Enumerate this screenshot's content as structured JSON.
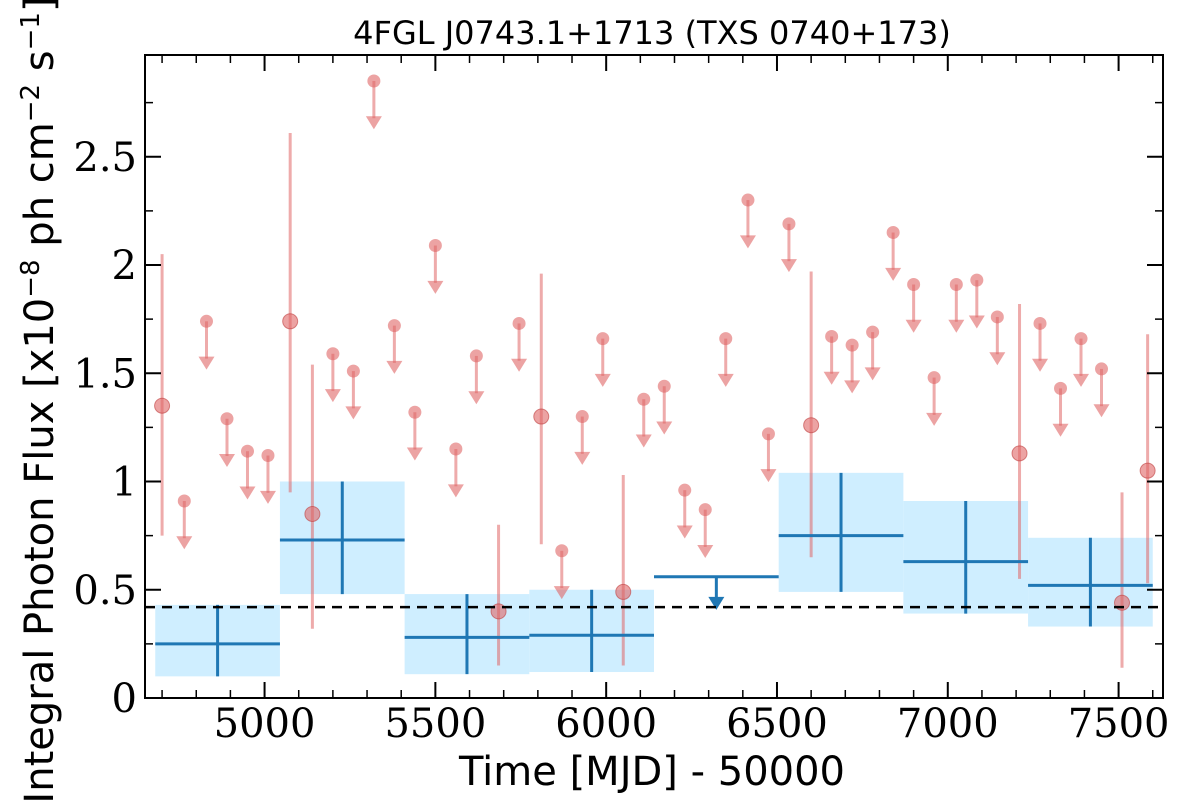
{
  "chart_data": {
    "type": "scatter",
    "title": "4FGL J0743.1+1713 (TXS 0740+173)",
    "xlabel": "Time [MJD] - 50000",
    "ylabel": "Integral Photon Flux [x10",
    "ylabel_exp1": "−8",
    "ylabel_mid": " ph cm",
    "ylabel_exp2": "−2",
    "ylabel_end": " s",
    "ylabel_exp3": "−1",
    "ylabel_close": "]",
    "xlim": [
      4650,
      7630
    ],
    "ylim": [
      0,
      2.97
    ],
    "xticks": [
      5000,
      5500,
      6000,
      6500,
      7000,
      7500
    ],
    "xtick_labels": [
      "5000",
      "5500",
      "6000",
      "6500",
      "7000",
      "7500"
    ],
    "yticks": [
      0,
      0.5,
      1,
      1.5,
      2,
      2.5
    ],
    "ytick_labels": [
      "0",
      "0.5",
      "1",
      "1.5",
      "2",
      "2.5"
    ],
    "reference_line": 0.42,
    "colors": {
      "points": "#e06666",
      "bins": "#1f77b4",
      "bin_fill": "#cfeeff",
      "reference": "#000000"
    },
    "short_detections": [
      {
        "x": 4700,
        "y": 1.35,
        "lo": 0.75,
        "hi": 2.05
      },
      {
        "x": 5075,
        "y": 1.74,
        "lo": 0.95,
        "hi": 2.61
      },
      {
        "x": 5140,
        "y": 0.85,
        "lo": 0.32,
        "hi": 1.54
      },
      {
        "x": 5685,
        "y": 0.4,
        "lo": 0.15,
        "hi": 0.8
      },
      {
        "x": 5810,
        "y": 1.3,
        "lo": 0.71,
        "hi": 1.96
      },
      {
        "x": 6050,
        "y": 0.49,
        "lo": 0.15,
        "hi": 1.03
      },
      {
        "x": 6600,
        "y": 1.26,
        "lo": 0.65,
        "hi": 1.97
      },
      {
        "x": 7210,
        "y": 1.13,
        "lo": 0.55,
        "hi": 1.82
      },
      {
        "x": 7510,
        "y": 0.44,
        "lo": 0.14,
        "hi": 0.95
      },
      {
        "x": 7585,
        "y": 1.05,
        "lo": 0.53,
        "hi": 1.68
      }
    ],
    "short_upper_limits": [
      {
        "x": 4765,
        "y": 0.91
      },
      {
        "x": 4830,
        "y": 1.74
      },
      {
        "x": 4890,
        "y": 1.29
      },
      {
        "x": 4950,
        "y": 1.14
      },
      {
        "x": 5010,
        "y": 1.12
      },
      {
        "x": 5200,
        "y": 1.59
      },
      {
        "x": 5260,
        "y": 1.51
      },
      {
        "x": 5320,
        "y": 2.85
      },
      {
        "x": 5380,
        "y": 1.72
      },
      {
        "x": 5440,
        "y": 1.32
      },
      {
        "x": 5500,
        "y": 2.09
      },
      {
        "x": 5560,
        "y": 1.15
      },
      {
        "x": 5620,
        "y": 1.58
      },
      {
        "x": 5745,
        "y": 1.73
      },
      {
        "x": 5870,
        "y": 0.68
      },
      {
        "x": 5930,
        "y": 1.3
      },
      {
        "x": 5990,
        "y": 1.66
      },
      {
        "x": 6110,
        "y": 1.38
      },
      {
        "x": 6170,
        "y": 1.44
      },
      {
        "x": 6230,
        "y": 0.96
      },
      {
        "x": 6290,
        "y": 0.87
      },
      {
        "x": 6350,
        "y": 1.66
      },
      {
        "x": 6415,
        "y": 2.3
      },
      {
        "x": 6475,
        "y": 1.22
      },
      {
        "x": 6535,
        "y": 2.19
      },
      {
        "x": 6660,
        "y": 1.67
      },
      {
        "x": 6720,
        "y": 1.63
      },
      {
        "x": 6780,
        "y": 1.69
      },
      {
        "x": 6840,
        "y": 2.15
      },
      {
        "x": 6900,
        "y": 1.91
      },
      {
        "x": 6960,
        "y": 1.48
      },
      {
        "x": 7025,
        "y": 1.91
      },
      {
        "x": 7085,
        "y": 1.93
      },
      {
        "x": 7145,
        "y": 1.76
      },
      {
        "x": 7270,
        "y": 1.73
      },
      {
        "x": 7330,
        "y": 1.43
      },
      {
        "x": 7390,
        "y": 1.66
      },
      {
        "x": 7450,
        "y": 1.52
      }
    ],
    "long_bins": [
      {
        "x0": 4680,
        "x1": 5045,
        "y": 0.25,
        "lo": 0.1,
        "hi": 0.43,
        "band_lo": 0.1,
        "band_hi": 0.43
      },
      {
        "x0": 5045,
        "x1": 5410,
        "y": 0.73,
        "lo": 0.48,
        "hi": 1.0,
        "band_lo": 0.48,
        "band_hi": 1.0
      },
      {
        "x0": 5410,
        "x1": 5775,
        "y": 0.28,
        "lo": 0.11,
        "hi": 0.48,
        "band_lo": 0.11,
        "band_hi": 0.48
      },
      {
        "x0": 5775,
        "x1": 6140,
        "y": 0.29,
        "lo": 0.12,
        "hi": 0.5,
        "band_lo": 0.12,
        "band_hi": 0.5
      },
      {
        "x0": 6505,
        "x1": 6870,
        "y": 0.75,
        "lo": 0.49,
        "hi": 1.04,
        "band_lo": 0.49,
        "band_hi": 1.04
      },
      {
        "x0": 6870,
        "x1": 7235,
        "y": 0.63,
        "lo": 0.39,
        "hi": 0.91,
        "band_lo": 0.39,
        "band_hi": 0.91
      },
      {
        "x0": 7235,
        "x1": 7600,
        "y": 0.52,
        "lo": 0.33,
        "hi": 0.74,
        "band_lo": 0.33,
        "band_hi": 0.74
      }
    ],
    "long_upper_limits": [
      {
        "x0": 6140,
        "x1": 6505,
        "y": 0.56
      }
    ]
  }
}
